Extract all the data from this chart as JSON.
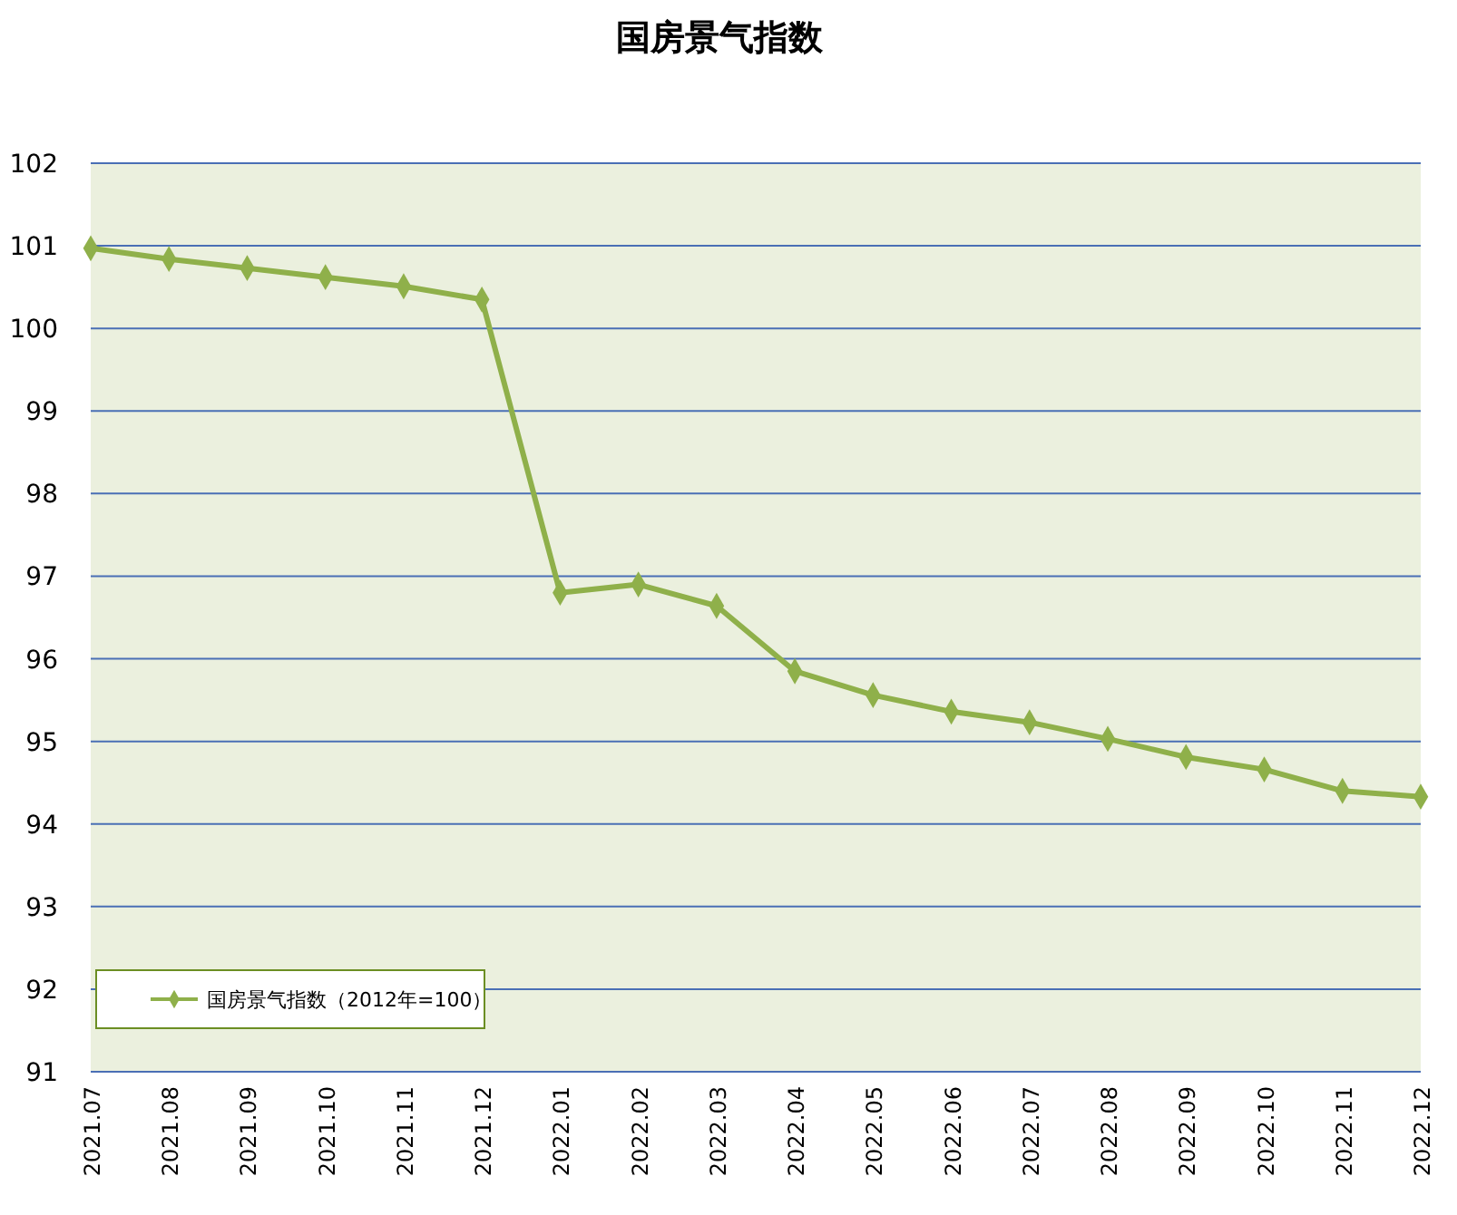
{
  "chart_data": {
    "type": "line",
    "title": "国房景气指数",
    "categories": [
      "2021.07",
      "2021.08",
      "2021.09",
      "2021.10",
      "2021.11",
      "2021.12",
      "2022.01",
      "2022.02",
      "2022.03",
      "2022.04",
      "2022.05",
      "2022.06",
      "2022.07",
      "2022.08",
      "2022.09",
      "2022.10",
      "2022.11",
      "2022.12"
    ],
    "series": [
      {
        "name": "国房景气指数（2012年=100）",
        "color": "#8fb04a",
        "values": [
          100.97,
          100.84,
          100.73,
          100.62,
          100.51,
          100.35,
          96.8,
          96.9,
          96.64,
          95.85,
          95.56,
          95.36,
          95.23,
          95.03,
          94.81,
          94.66,
          94.4,
          94.33
        ]
      }
    ],
    "ylim": [
      91,
      102
    ],
    "yticks": [
      91,
      92,
      93,
      94,
      95,
      96,
      97,
      98,
      99,
      100,
      101,
      102
    ],
    "grid": "y",
    "legend": "bottom left",
    "marker": "diamond",
    "line_style": "solid"
  }
}
